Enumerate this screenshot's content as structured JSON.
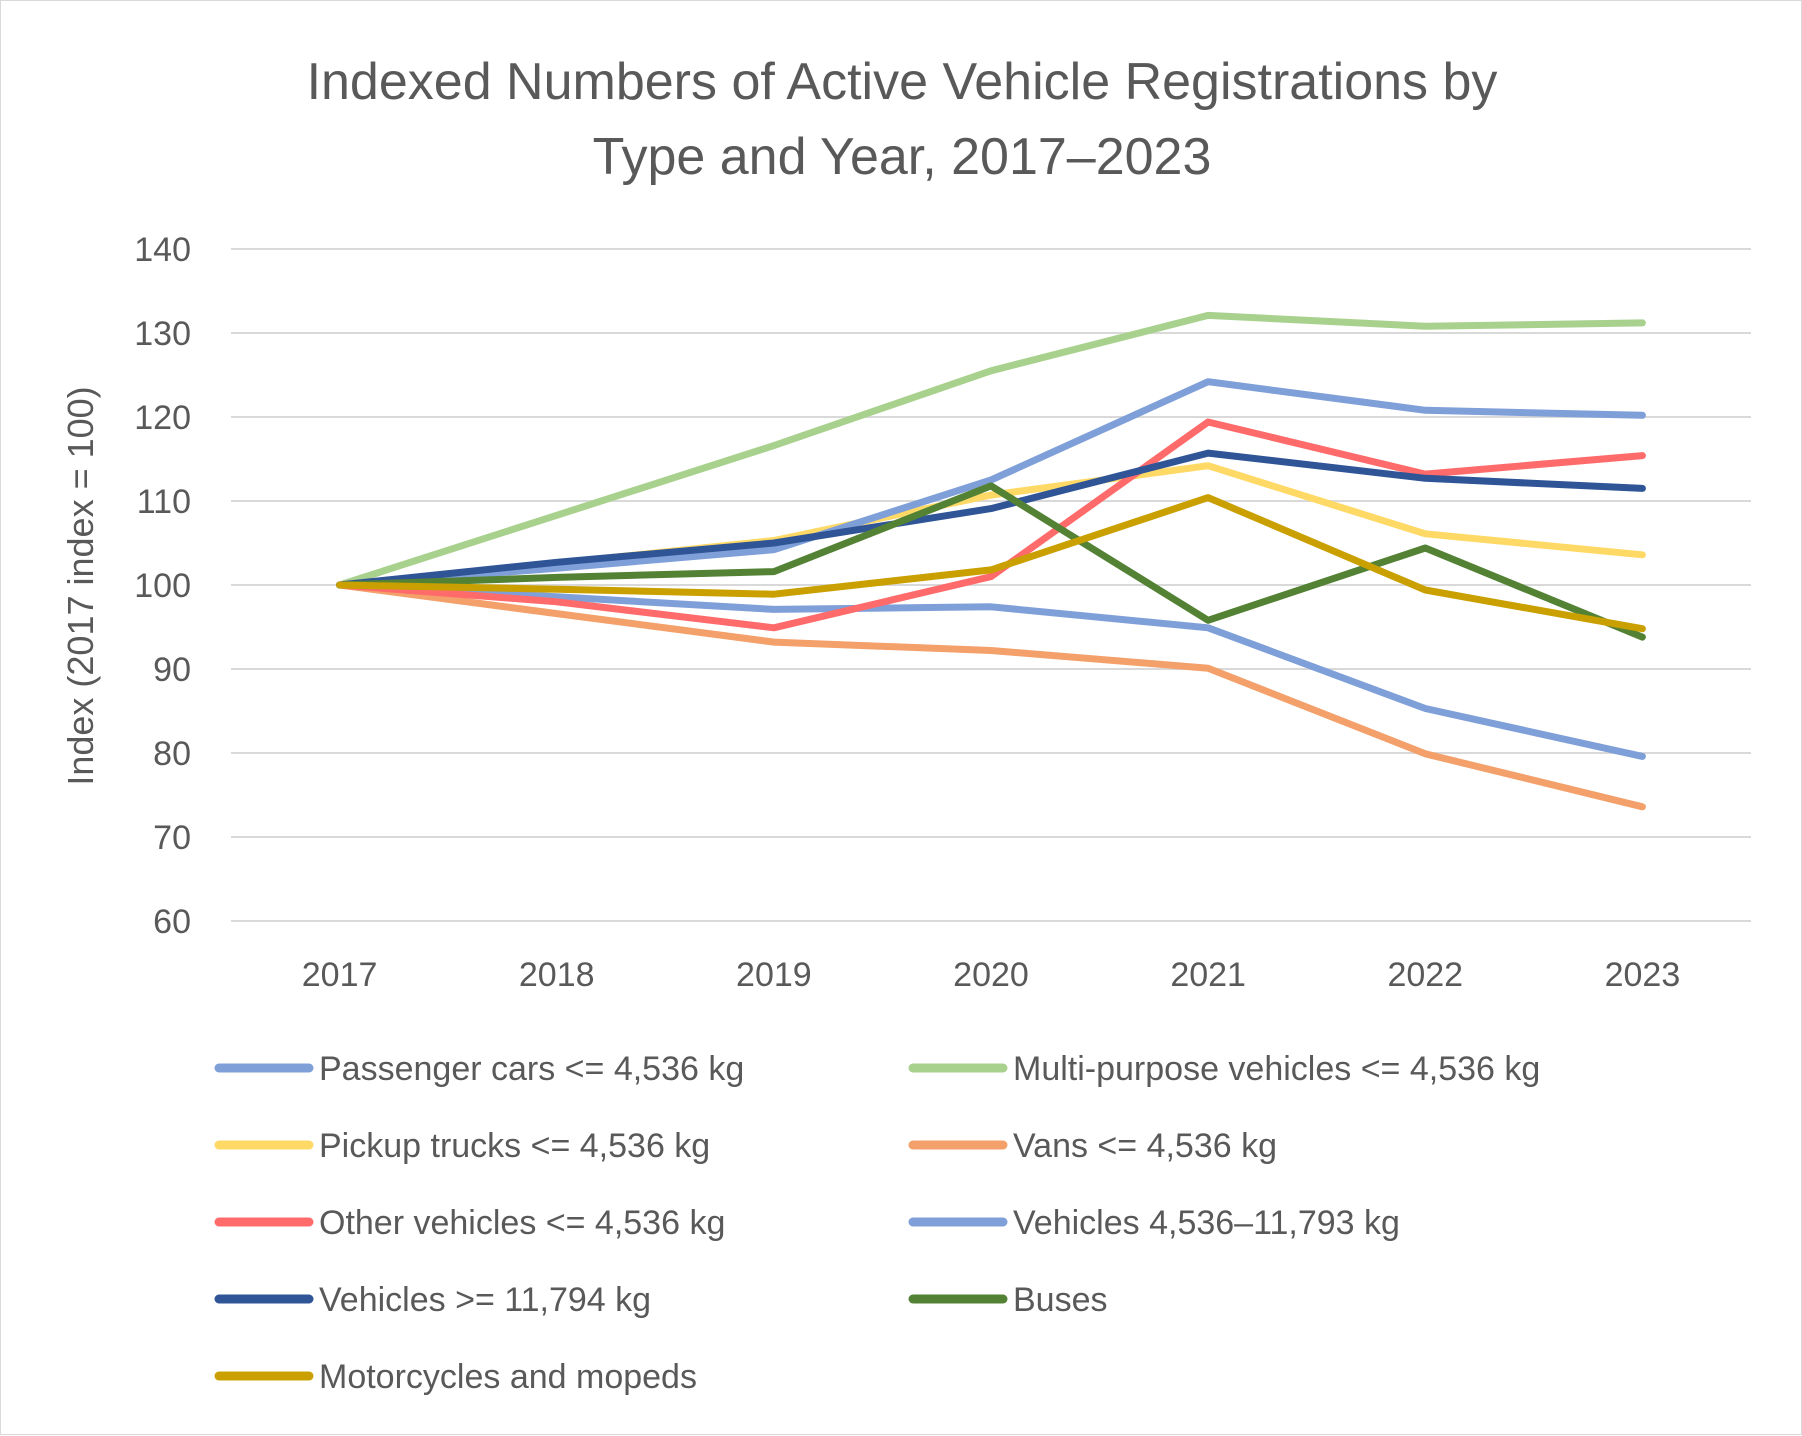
{
  "chart_data": {
    "type": "line",
    "title_lines": [
      "Indexed Numbers of Active Vehicle Registrations by",
      "Type and Year, 2017–2023"
    ],
    "xlabel": "",
    "ylabel": "Index (2017 index = 100)",
    "ylim": [
      60,
      140
    ],
    "yticks": [
      60,
      70,
      80,
      90,
      100,
      110,
      120,
      130,
      140
    ],
    "ytick_labels": [
      "60",
      "70",
      "80",
      "90",
      "100",
      "110",
      "120",
      "130",
      "140"
    ],
    "categories": [
      "2017",
      "2018",
      "2019",
      "2020",
      "2021",
      "2022",
      "2023"
    ],
    "grid": true,
    "legend_position": "bottom",
    "series": [
      {
        "name": "Passenger cars <= 4,536 kg",
        "color": "#7f9fd8",
        "values": [
          100,
          98.6,
          97.1,
          97.4,
          94.9,
          85.3,
          79.6
        ]
      },
      {
        "name": "Multi-purpose vehicles <= 4,536 kg",
        "color": "#a9d18e",
        "values": [
          100,
          108.3,
          116.6,
          125.5,
          132.1,
          130.8,
          131.2
        ]
      },
      {
        "name": "Pickup trucks <= 4,536 kg",
        "color": "#ffd966",
        "values": [
          100,
          102.6,
          105.3,
          110.7,
          114.2,
          106.1,
          103.6
        ]
      },
      {
        "name": "Vans <= 4,536 kg",
        "color": "#f4a06a",
        "values": [
          100,
          96.6,
          93.2,
          92.2,
          90.1,
          79.9,
          73.6
        ]
      },
      {
        "name": "Other vehicles <= 4,536 kg",
        "color": "#ff6b6b",
        "values": [
          100,
          98.0,
          94.9,
          101.0,
          119.4,
          113.2,
          115.4
        ]
      },
      {
        "name": "Vehicles 4,536–11,793 kg",
        "color": "#7f9fd8",
        "values": [
          100,
          102.0,
          104.2,
          112.5,
          124.2,
          120.8,
          120.2
        ]
      },
      {
        "name": "Vehicles >= 11,794 kg",
        "color": "#2f5597",
        "values": [
          100,
          102.7,
          105.0,
          109.1,
          115.7,
          112.7,
          111.5
        ]
      },
      {
        "name": "Buses",
        "color": "#548235",
        "values": [
          100,
          100.9,
          101.6,
          111.8,
          95.8,
          104.4,
          93.8
        ]
      },
      {
        "name": "Motorcycles and mopeds",
        "color": "#c9a000",
        "values": [
          100,
          99.5,
          98.9,
          101.8,
          110.4,
          99.4,
          94.8
        ]
      }
    ]
  }
}
